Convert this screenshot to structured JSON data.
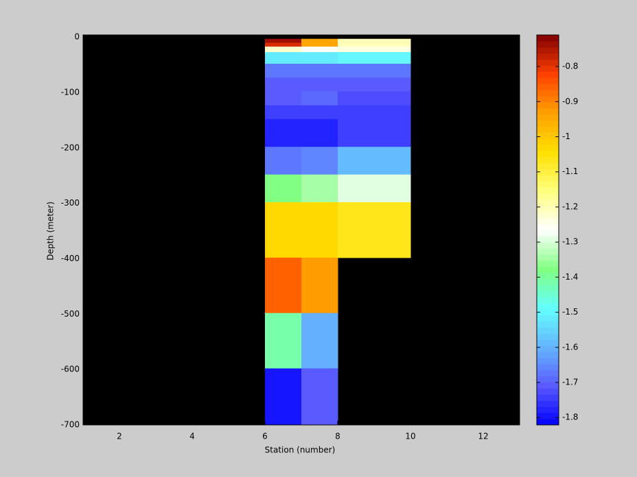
{
  "chart_data": {
    "type": "heatmap",
    "xlabel": "Station (number)",
    "ylabel": "Depth (meter)",
    "x_edges": [
      6,
      7,
      8,
      10
    ],
    "y_edges": [
      -3,
      -10,
      -17,
      -27,
      -48,
      -73,
      -98,
      -123,
      -148,
      -198,
      -248,
      -298,
      -398,
      -498,
      -598,
      -700
    ],
    "values": [
      [
        -0.74,
        -0.95,
        -1.2
      ],
      [
        -0.79,
        -0.95,
        -1.2
      ],
      [
        -1.22,
        -1.25,
        -1.24
      ],
      [
        -1.52,
        -1.52,
        -1.5
      ],
      [
        -1.67,
        -1.67,
        -1.67
      ],
      [
        -1.7,
        -1.7,
        -1.7
      ],
      [
        -1.71,
        -1.69,
        -1.73
      ],
      [
        -1.74,
        -1.74,
        -1.74
      ],
      [
        -1.77,
        -1.77,
        -1.74
      ],
      [
        -1.67,
        -1.65,
        -1.59
      ],
      [
        -1.37,
        -1.35,
        -1.3
      ],
      [
        -1.03,
        -1.03,
        -1.06
      ],
      [
        -0.86,
        -0.93,
        null
      ],
      [
        -1.42,
        -1.6,
        null
      ],
      [
        -1.8,
        -1.7,
        null
      ]
    ],
    "xlim": [
      1,
      13
    ],
    "xticks": [
      2,
      4,
      6,
      8,
      10,
      12
    ],
    "ylim": [
      -700,
      4
    ],
    "yticks": [
      -700,
      -600,
      -500,
      -400,
      -300,
      -200,
      -100,
      0
    ],
    "background": "#000000",
    "colormap": [
      "#0000ff",
      "#5a5aff",
      "#64b4ff",
      "#64ffff",
      "#80ff80",
      "#ffffff",
      "#ffff80",
      "#ffe000",
      "#ffa000",
      "#ff4000",
      "#800000"
    ],
    "colormap_levels": 64,
    "clim": [
      -1.821,
      -0.71
    ],
    "cticks": [
      -1.8,
      -1.7,
      -1.6,
      -1.5,
      -1.4,
      -1.3,
      -1.2,
      -1.1,
      -1,
      -0.9,
      -0.8
    ]
  }
}
